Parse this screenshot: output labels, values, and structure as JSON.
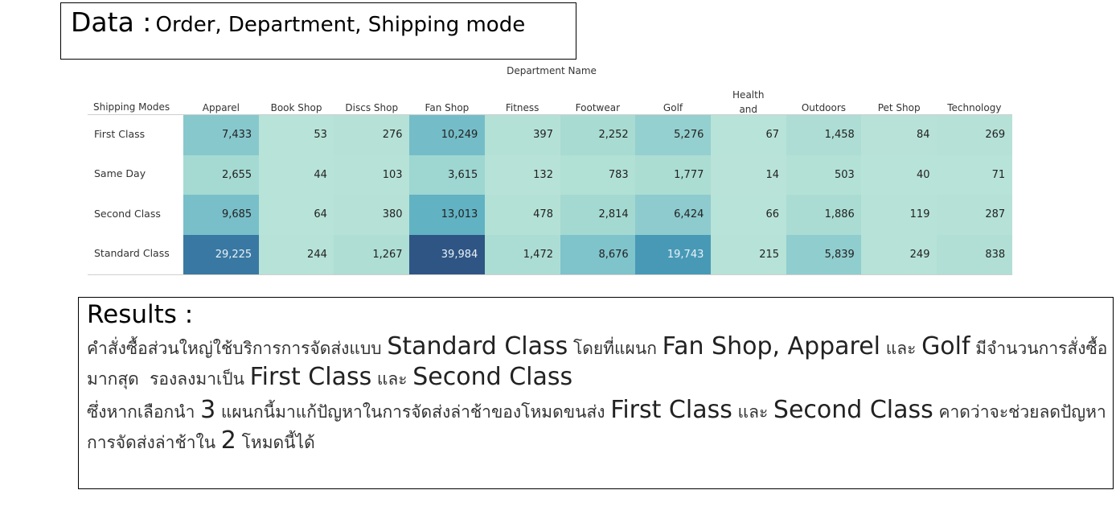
{
  "header": {
    "label": "Data :",
    "fields": "Order, Department, Shipping mode"
  },
  "chart_data": {
    "type": "heatmap",
    "column_group_label": "Department Name",
    "row_header_label": "Shipping Modes",
    "columns": [
      "Apparel",
      "Book Shop",
      "Discs Shop",
      "Fan Shop",
      "Fitness",
      "Footwear",
      "Golf",
      "Health and Beauty",
      "Outdoors",
      "Pet Shop",
      "Technology"
    ],
    "rows": [
      "First Class",
      "Same Day",
      "Second Class",
      "Standard Class"
    ],
    "values": [
      [
        7433,
        53,
        276,
        10249,
        397,
        2252,
        5276,
        67,
        1458,
        84,
        269
      ],
      [
        2655,
        44,
        103,
        3615,
        132,
        783,
        1777,
        14,
        503,
        40,
        71
      ],
      [
        9685,
        64,
        380,
        13013,
        478,
        2814,
        6424,
        66,
        1886,
        119,
        287
      ],
      [
        29225,
        244,
        1267,
        39984,
        1472,
        8676,
        19743,
        215,
        5839,
        249,
        838
      ]
    ],
    "value_labels": [
      [
        "7,433",
        "53",
        "276",
        "10,249",
        "397",
        "2,252",
        "5,276",
        "67",
        "1,458",
        "84",
        "269"
      ],
      [
        "2,655",
        "44",
        "103",
        "3,615",
        "132",
        "783",
        "1,777",
        "14",
        "503",
        "40",
        "71"
      ],
      [
        "9,685",
        "64",
        "380",
        "13,013",
        "478",
        "2,814",
        "6,424",
        "66",
        "1,886",
        "119",
        "287"
      ],
      [
        "29,225",
        "244",
        "1,267",
        "39,984",
        "1,472",
        "8,676",
        "19,743",
        "215",
        "5,839",
        "249",
        "838"
      ]
    ],
    "color_scale": [
      "#b9e3d8",
      "#2f5585"
    ],
    "grid": false
  },
  "results": {
    "title": "Results :",
    "paragraph1": [
      {
        "text": "คำสั่งซื้อส่วนใหญ่ใช้บริการการจัดส่งแบบ ",
        "big": false
      },
      {
        "text": "Standard Class",
        "big": true
      },
      {
        "text": " โดยที่แผนก ",
        "big": false
      },
      {
        "text": "Fan Shop, Apparel",
        "big": true
      },
      {
        "text": " และ ",
        "big": false
      },
      {
        "text": "Golf",
        "big": true
      },
      {
        "text": " มีจำนวนการสั่งซื้อมากสุด  รองลงมาเป็น ",
        "big": false
      },
      {
        "text": "First Class",
        "big": true
      },
      {
        "text": " และ ",
        "big": false
      },
      {
        "text": "Second Class",
        "big": true
      }
    ],
    "paragraph2": [
      {
        "text": "ซึ่งหากเลือกนำ ",
        "big": false
      },
      {
        "text": "3",
        "big": true
      },
      {
        "text": " แผนกนี้มาแก้ปัญหาในการจัดส่งล่าช้าของโหมดขนส่ง ",
        "big": false
      },
      {
        "text": "First Class",
        "big": true
      },
      {
        "text": " และ ",
        "big": false
      },
      {
        "text": "Second Class",
        "big": true
      },
      {
        "text": " คาดว่าจะช่วยลดปัญหาการจัดส่งล่าช้าใน ",
        "big": false
      },
      {
        "text": "2",
        "big": true
      },
      {
        "text": " โหมดนี้ได้",
        "big": false
      }
    ]
  }
}
